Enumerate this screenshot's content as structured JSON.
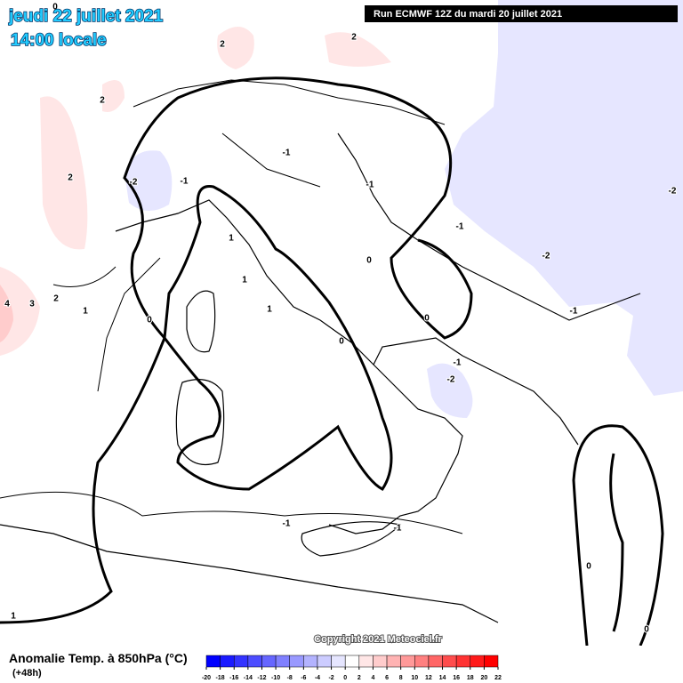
{
  "header": {
    "date": "jeudi 22 juillet 2021",
    "time": "14:00 locale",
    "run": "Run ECMWF 12Z du mardi 20 juillet 2021"
  },
  "map": {
    "copyright": "Copyright 2021 Meteociel.fr",
    "contour_labels": [
      "0",
      "2",
      "2",
      "2",
      "2",
      "-2",
      "-1",
      "-1",
      "-1",
      "-1",
      "-2",
      "-2",
      "1",
      "1",
      "1",
      "0",
      "0",
      "0",
      "0",
      "-1",
      "-2",
      "-1",
      "4",
      "3",
      "2",
      "1",
      "-1",
      "-1",
      "0",
      "0",
      "1"
    ]
  },
  "colorbar": {
    "title": "Anomalie Temp. à 850hPa (°C)",
    "lead": "(+48h)",
    "ticks": [
      -20,
      -18,
      -16,
      -14,
      -12,
      -10,
      -8,
      -6,
      -4,
      -2,
      0,
      2,
      4,
      6,
      8,
      10,
      12,
      14,
      16,
      18,
      20,
      22
    ],
    "colors": [
      "#0000ff",
      "#1a1aff",
      "#3333ff",
      "#4d4dff",
      "#6666ff",
      "#8080ff",
      "#9999ff",
      "#b3b3ff",
      "#ccccff",
      "#e6e6ff",
      "#ffffff",
      "#ffe6e6",
      "#ffcccc",
      "#ffb3b3",
      "#ff9999",
      "#ff8080",
      "#ff6666",
      "#ff4d4d",
      "#ff3333",
      "#ff1a1a",
      "#ff0000"
    ]
  }
}
